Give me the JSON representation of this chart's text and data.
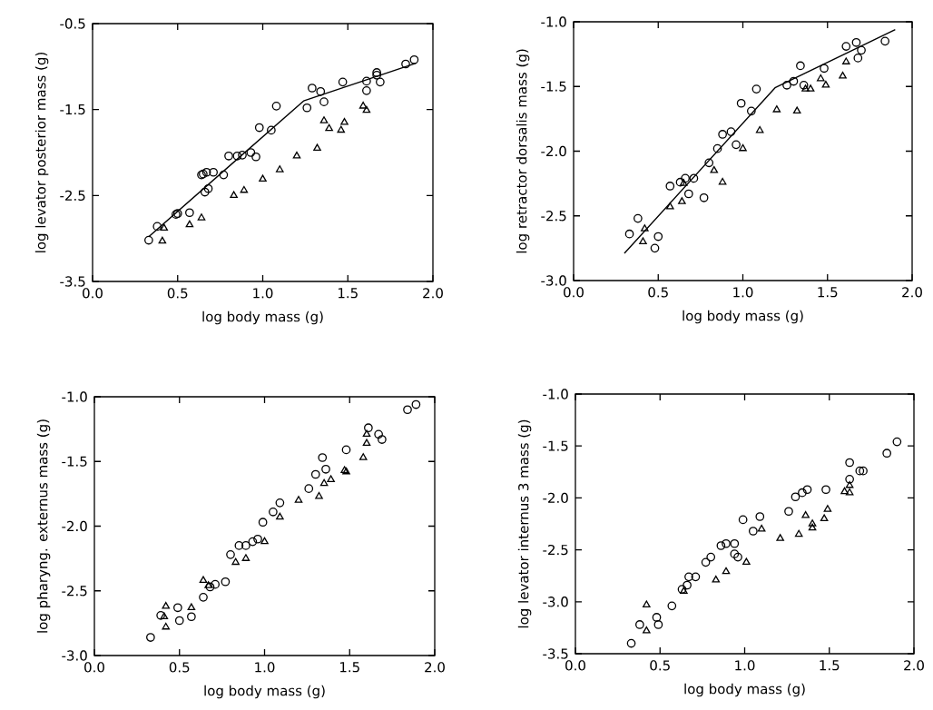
{
  "chart_data": [
    {
      "type": "scatter",
      "xlabel": "log body mass (g)",
      "ylabel": "log levator posterior mass (g)",
      "xlim": [
        0,
        2
      ],
      "ylim": [
        -3.5,
        -0.5
      ],
      "xticks": [
        {
          "value": 0,
          "label": "0.0"
        },
        {
          "value": 0.5,
          "label": "0.5"
        },
        {
          "value": 1,
          "label": "1.0"
        },
        {
          "value": 1.5,
          "label": "1.5"
        },
        {
          "value": 2,
          "label": "2.0"
        }
      ],
      "yticks": [
        -3.5,
        -2.5,
        -1.5,
        -0.5
      ],
      "series": [
        {
          "type": "scatter",
          "marker": "circle",
          "color": "#000000",
          "x": [
            0.33,
            0.38,
            0.49,
            0.5,
            0.57,
            0.66,
            0.68,
            0.64,
            0.65,
            0.67,
            0.71,
            0.77,
            0.8,
            0.85,
            0.88,
            0.93,
            0.96,
            0.98,
            1.05,
            1.08,
            1.26,
            1.29,
            1.34,
            1.36,
            1.47,
            1.61,
            1.61,
            1.67,
            1.67,
            1.69,
            1.84,
            1.89
          ],
          "values": [
            -3.02,
            -2.86,
            -2.72,
            -2.71,
            -2.7,
            -2.46,
            -2.42,
            -2.26,
            -2.25,
            -2.23,
            -2.23,
            -2.26,
            -2.04,
            -2.04,
            -2.03,
            -2.0,
            -2.05,
            -1.71,
            -1.74,
            -1.46,
            -1.48,
            -1.25,
            -1.29,
            -1.41,
            -1.18,
            -1.17,
            -1.28,
            -1.07,
            -1.1,
            -1.18,
            -0.97,
            -0.92
          ]
        },
        {
          "type": "scatter",
          "marker": "triangle",
          "color": "#000000",
          "x": [
            0.42,
            0.41,
            0.57,
            0.64,
            0.83,
            0.89,
            1.0,
            1.1,
            1.2,
            1.32,
            1.36,
            1.39,
            1.46,
            1.48,
            1.59,
            1.61
          ],
          "values": [
            -2.88,
            -3.03,
            -2.84,
            -2.76,
            -2.5,
            -2.44,
            -2.31,
            -2.2,
            -2.04,
            -1.95,
            -1.63,
            -1.72,
            -1.74,
            -1.65,
            -1.46,
            -1.51
          ]
        },
        {
          "type": "line",
          "color": "#000000",
          "x": [
            0.33,
            1.24,
            1.9
          ],
          "values": [
            -2.98,
            -1.4,
            -0.96
          ]
        }
      ]
    },
    {
      "type": "scatter",
      "xlabel": "log body mass (g)",
      "ylabel": "log retractor dorsalis mass (g)",
      "xlim": [
        0,
        2
      ],
      "ylim": [
        -3.0,
        -1.0
      ],
      "xticks": [
        {
          "value": 0,
          "label": "0.0"
        },
        {
          "value": 0.5,
          "label": "0.5"
        },
        {
          "value": 1,
          "label": "1.0"
        },
        {
          "value": 1.5,
          "label": "1.5"
        },
        {
          "value": 2,
          "label": "2.0"
        }
      ],
      "yticks": [
        {
          "value": -3.0,
          "label": "-3.0"
        },
        -2.5,
        {
          "value": -2.0,
          "label": "-2.0"
        },
        -1.5,
        {
          "value": -1.0,
          "label": "-1.0"
        }
      ],
      "series": [
        {
          "type": "scatter",
          "marker": "circle",
          "color": "#000000",
          "x": [
            0.33,
            0.38,
            0.5,
            0.48,
            0.57,
            0.63,
            0.66,
            0.71,
            0.68,
            0.77,
            0.8,
            0.85,
            0.88,
            0.93,
            0.96,
            0.99,
            1.05,
            1.08,
            1.26,
            1.3,
            1.34,
            1.36,
            1.48,
            1.61,
            1.67,
            1.7,
            1.68,
            1.84
          ],
          "values": [
            -2.64,
            -2.52,
            -2.66,
            -2.75,
            -2.27,
            -2.24,
            -2.21,
            -2.21,
            -2.33,
            -2.36,
            -2.09,
            -1.98,
            -1.87,
            -1.85,
            -1.95,
            -1.63,
            -1.69,
            -1.52,
            -1.49,
            -1.46,
            -1.34,
            -1.49,
            -1.36,
            -1.19,
            -1.16,
            -1.22,
            -1.28,
            -1.15
          ]
        },
        {
          "type": "scatter",
          "marker": "triangle",
          "color": "#000000",
          "x": [
            0.42,
            0.41,
            0.57,
            0.64,
            0.65,
            0.83,
            0.88,
            1.0,
            1.1,
            1.2,
            1.32,
            1.37,
            1.4,
            1.46,
            1.49,
            1.59,
            1.61
          ],
          "values": [
            -2.6,
            -2.7,
            -2.43,
            -2.39,
            -2.25,
            -2.15,
            -2.24,
            -1.98,
            -1.84,
            -1.68,
            -1.69,
            -1.52,
            -1.52,
            -1.44,
            -1.49,
            -1.42,
            -1.31
          ]
        },
        {
          "type": "line",
          "color": "#000000",
          "x": [
            0.3,
            1.19,
            1.9
          ],
          "values": [
            -2.79,
            -1.51,
            -1.06
          ]
        }
      ]
    },
    {
      "type": "scatter",
      "xlabel": "log body mass (g)",
      "ylabel": "log pharyng. externus mass (g)",
      "xlim": [
        0,
        2
      ],
      "ylim": [
        -3.0,
        -1.0
      ],
      "xticks": [
        {
          "value": 0,
          "label": "0.0"
        },
        {
          "value": 0.5,
          "label": "0.5"
        },
        {
          "value": 1,
          "label": "1.0"
        },
        {
          "value": 1.5,
          "label": "1.5"
        },
        {
          "value": 2,
          "label": "2.0"
        }
      ],
      "yticks": [
        {
          "value": -3.0,
          "label": "-3.0"
        },
        -2.5,
        {
          "value": -2.0,
          "label": "-2.0"
        },
        -1.5,
        {
          "value": -1.0,
          "label": "-1.0"
        }
      ],
      "series": [
        {
          "type": "scatter",
          "marker": "circle",
          "color": "#000000",
          "x": [
            0.33,
            0.39,
            0.49,
            0.5,
            0.57,
            0.64,
            0.68,
            0.71,
            0.77,
            0.8,
            0.85,
            0.89,
            0.93,
            0.96,
            0.99,
            1.05,
            1.09,
            1.26,
            1.3,
            1.36,
            1.34,
            1.48,
            1.61,
            1.67,
            1.69,
            1.84,
            1.89
          ],
          "values": [
            -2.86,
            -2.69,
            -2.63,
            -2.73,
            -2.7,
            -2.55,
            -2.47,
            -2.45,
            -2.43,
            -2.22,
            -2.15,
            -2.15,
            -2.12,
            -2.1,
            -1.97,
            -1.89,
            -1.82,
            -1.71,
            -1.6,
            -1.56,
            -1.47,
            -1.41,
            -1.24,
            -1.29,
            -1.33,
            -1.1,
            -1.06
          ]
        },
        {
          "type": "scatter",
          "marker": "triangle",
          "color": "#000000",
          "x": [
            0.42,
            0.41,
            0.42,
            0.57,
            0.64,
            0.67,
            0.83,
            0.89,
            1.0,
            1.09,
            1.2,
            1.32,
            1.35,
            1.39,
            1.47,
            1.48,
            1.58,
            1.6,
            1.6
          ],
          "values": [
            -2.62,
            -2.7,
            -2.78,
            -2.63,
            -2.42,
            -2.46,
            -2.28,
            -2.25,
            -2.12,
            -1.93,
            -1.8,
            -1.77,
            -1.67,
            -1.64,
            -1.57,
            -1.58,
            -1.47,
            -1.36,
            -1.29
          ]
        }
      ]
    },
    {
      "type": "scatter",
      "xlabel": "log body mass (g)",
      "ylabel": "log levator internus 3 mass (g)",
      "xlim": [
        0,
        2
      ],
      "ylim": [
        -3.5,
        -1.0
      ],
      "xticks": [
        {
          "value": 0,
          "label": "0.0"
        },
        {
          "value": 0.5,
          "label": "0.5"
        },
        {
          "value": 1,
          "label": "1.0"
        },
        {
          "value": 1.5,
          "label": "1.5"
        },
        {
          "value": 2,
          "label": "2.0"
        }
      ],
      "yticks": [
        -3.5,
        {
          "value": -3.0,
          "label": "-3.0"
        },
        -2.5,
        {
          "value": -2.0,
          "label": "-2.0"
        },
        -1.5,
        {
          "value": -1.0,
          "label": "-1.0"
        }
      ],
      "series": [
        {
          "type": "scatter",
          "marker": "circle",
          "color": "#000000",
          "x": [
            0.33,
            0.38,
            0.48,
            0.49,
            0.57,
            0.63,
            0.66,
            0.67,
            0.71,
            0.77,
            0.8,
            0.86,
            0.89,
            0.94,
            0.94,
            0.96,
            0.99,
            1.05,
            1.09,
            1.26,
            1.3,
            1.34,
            1.37,
            1.48,
            1.62,
            1.62,
            1.68,
            1.7,
            1.84,
            1.9
          ],
          "values": [
            -3.4,
            -3.22,
            -3.15,
            -3.22,
            -3.04,
            -2.88,
            -2.84,
            -2.76,
            -2.76,
            -2.62,
            -2.57,
            -2.46,
            -2.44,
            -2.44,
            -2.54,
            -2.57,
            -2.21,
            -2.32,
            -2.18,
            -2.13,
            -1.99,
            -1.95,
            -1.92,
            -1.92,
            -1.66,
            -1.82,
            -1.74,
            -1.74,
            -1.57,
            -1.46
          ]
        },
        {
          "type": "scatter",
          "marker": "triangle",
          "color": "#000000",
          "x": [
            0.42,
            0.42,
            0.64,
            0.83,
            0.89,
            1.01,
            1.1,
            1.21,
            1.32,
            1.36,
            1.4,
            1.4,
            1.47,
            1.49,
            1.59,
            1.62,
            1.62
          ],
          "values": [
            -3.03,
            -3.28,
            -2.9,
            -2.79,
            -2.71,
            -2.62,
            -2.3,
            -2.39,
            -2.35,
            -2.17,
            -2.25,
            -2.29,
            -2.2,
            -2.11,
            -1.94,
            -1.95,
            -1.88
          ]
        }
      ]
    }
  ]
}
